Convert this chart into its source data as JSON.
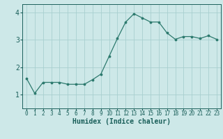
{
  "x": [
    0,
    1,
    2,
    3,
    4,
    5,
    6,
    7,
    8,
    9,
    10,
    11,
    12,
    13,
    14,
    15,
    16,
    17,
    18,
    19,
    20,
    21,
    22,
    23
  ],
  "y": [
    1.6,
    1.05,
    1.45,
    1.45,
    1.45,
    1.38,
    1.38,
    1.38,
    1.55,
    1.75,
    2.4,
    3.05,
    3.65,
    3.95,
    3.8,
    3.65,
    3.65,
    3.25,
    3.02,
    3.12,
    3.12,
    3.05,
    3.15,
    3.02
  ],
  "xlabel": "Humidex (Indice chaleur)",
  "yticks": [
    1,
    2,
    3,
    4
  ],
  "xticks": [
    0,
    1,
    2,
    3,
    4,
    5,
    6,
    7,
    8,
    9,
    10,
    11,
    12,
    13,
    14,
    15,
    16,
    17,
    18,
    19,
    20,
    21,
    22,
    23
  ],
  "ylim": [
    0.5,
    4.3
  ],
  "xlim": [
    -0.5,
    23.5
  ],
  "line_color": "#2d7a6e",
  "marker_color": "#2d7a6e",
  "bg_color": "#cde8e8",
  "grid_color": "#a8d0d0",
  "tick_color": "#1a5f5a",
  "label_color": "#1a5f5a",
  "font_size_ticks_x": 5.5,
  "font_size_ticks_y": 7.0,
  "font_size_xlabel": 7.0
}
